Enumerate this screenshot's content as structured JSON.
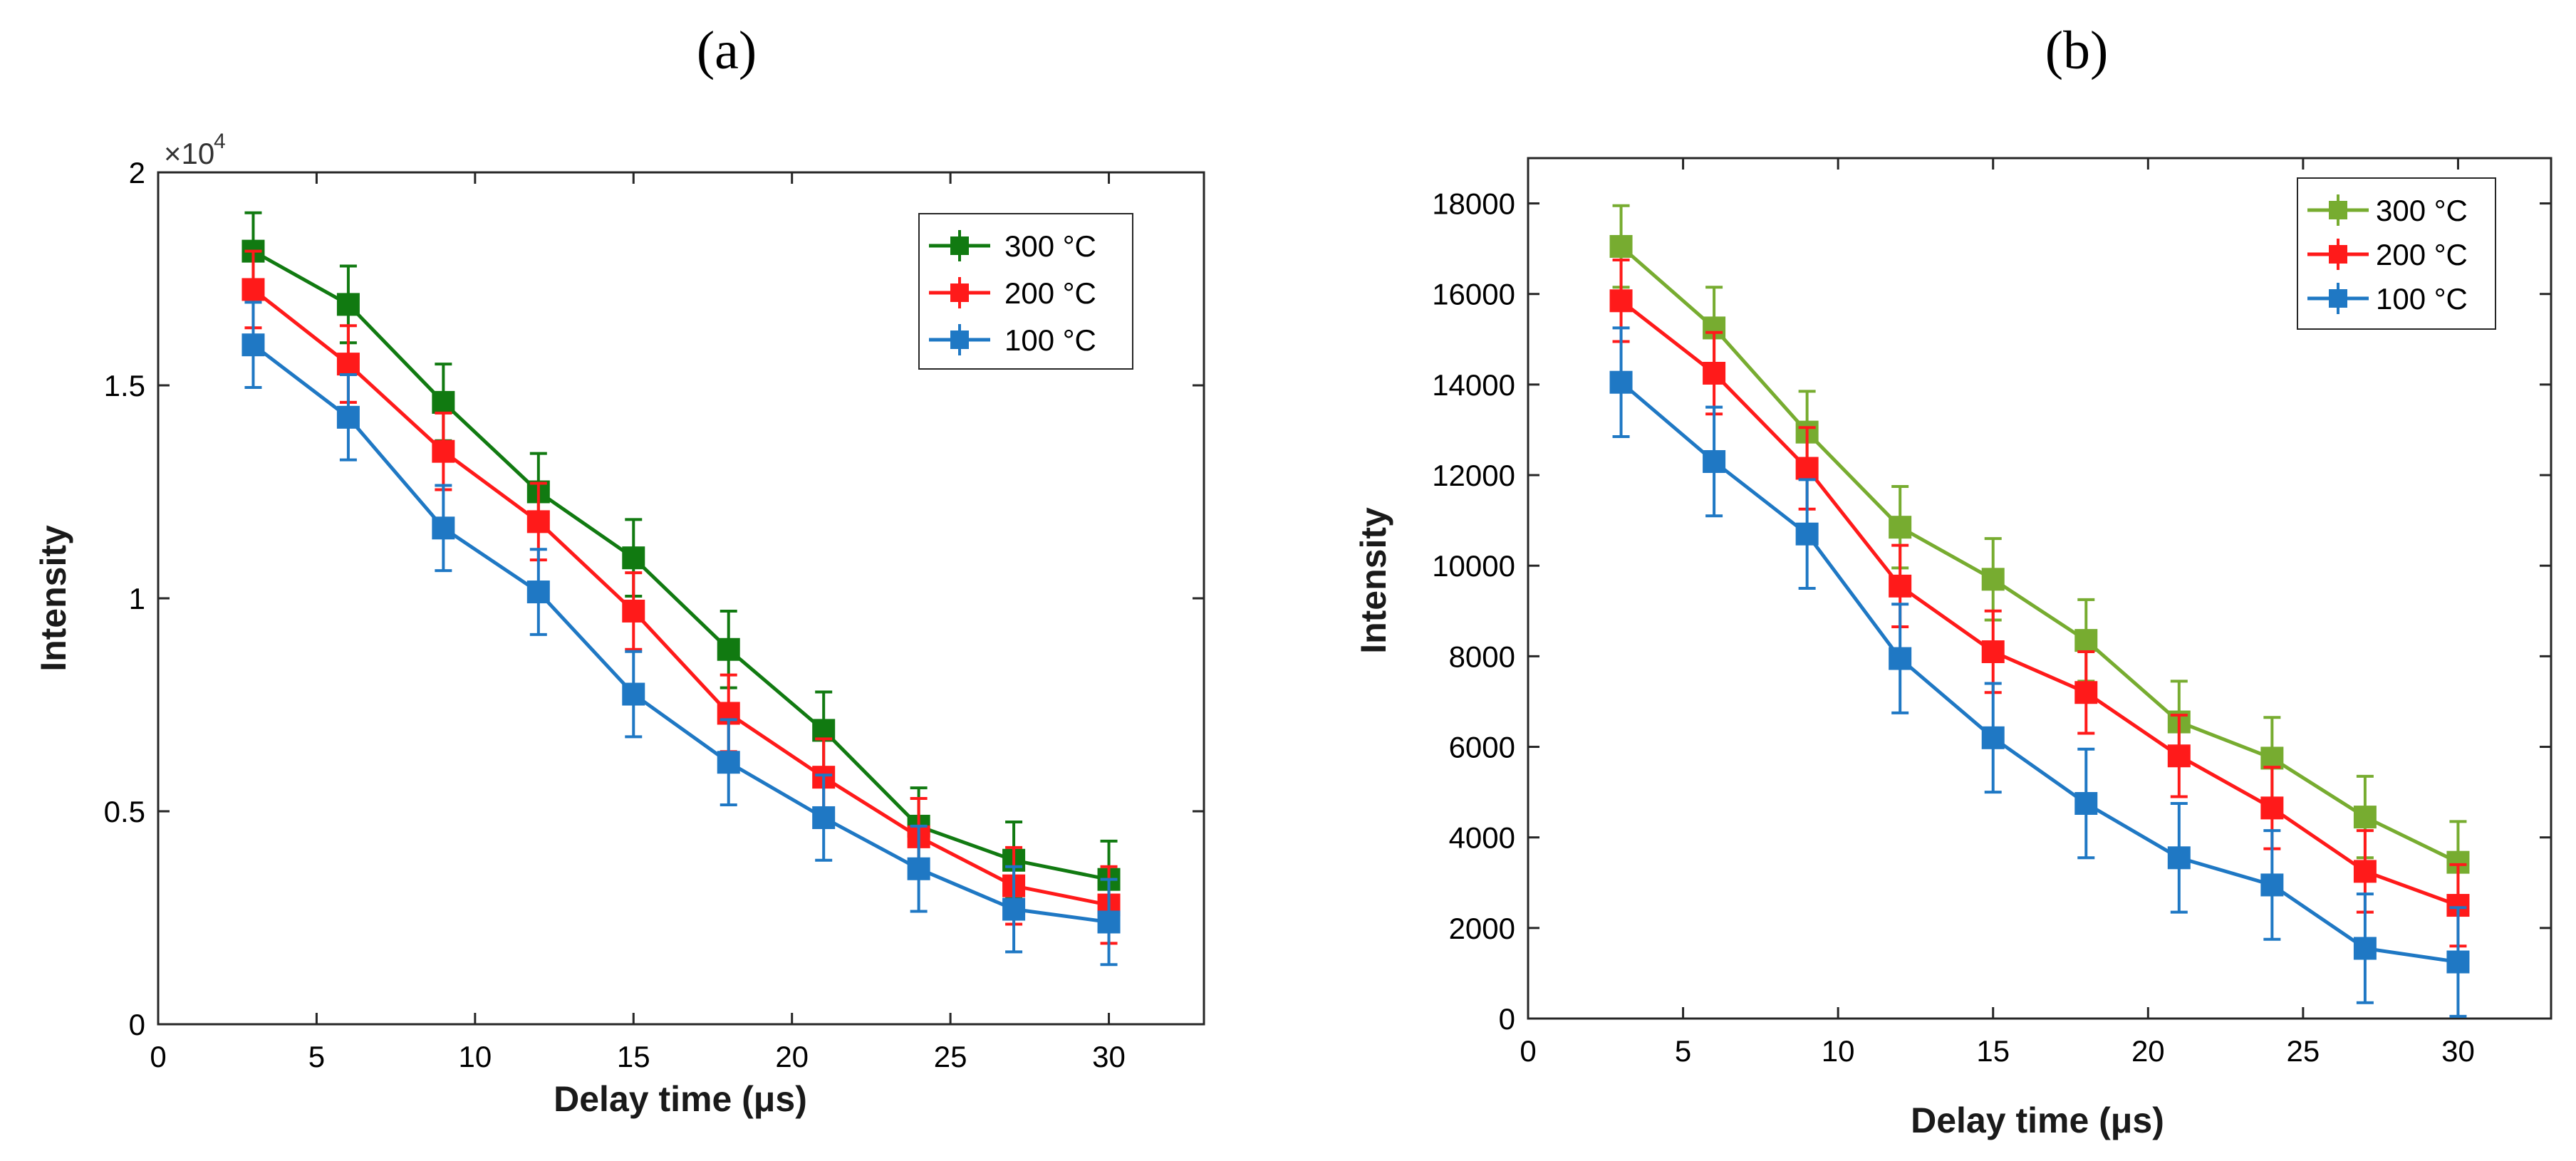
{
  "chart_data": [
    {
      "type": "line",
      "panel_label": "(a)",
      "title": "",
      "xlabel": "Delay time (μs)",
      "ylabel": "Intensity",
      "xlim": [
        0,
        33
      ],
      "ylim": [
        0,
        20000
      ],
      "xticks": [
        0,
        5,
        10,
        15,
        20,
        25,
        30
      ],
      "yticks": [
        0,
        5000,
        10000,
        15000,
        20000
      ],
      "ytick_labels": [
        "0",
        "0.5",
        "1",
        "1.5",
        "2"
      ],
      "y_exponent": {
        "base": "×10",
        "power": "4"
      },
      "grid": false,
      "legend_position": "top-right",
      "x": [
        3,
        6,
        9,
        12,
        15,
        18,
        21,
        24,
        27,
        30
      ],
      "series": [
        {
          "name": "300 °C",
          "color": "#117a11",
          "values": [
            18150,
            16900,
            14600,
            12500,
            10950,
            8800,
            6900,
            4650,
            3850,
            3400
          ],
          "errors": [
            900,
            900,
            900,
            900,
            900,
            900,
            900,
            900,
            900,
            900
          ]
        },
        {
          "name": "200 °C",
          "color": "#ff1a1a",
          "values": [
            17250,
            15500,
            13450,
            11800,
            9700,
            7300,
            5800,
            4400,
            3250,
            2800
          ],
          "errors": [
            900,
            900,
            900,
            900,
            900,
            900,
            900,
            900,
            900,
            900
          ]
        },
        {
          "name": "100 °C",
          "color": "#1f78c4",
          "values": [
            15950,
            14250,
            11650,
            10150,
            7750,
            6150,
            4850,
            3650,
            2700,
            2400
          ],
          "errors": [
            1000,
            1000,
            1000,
            1000,
            1000,
            1000,
            1000,
            1000,
            1000,
            1000
          ]
        }
      ]
    },
    {
      "type": "line",
      "panel_label": "(b)",
      "title": "",
      "xlabel": "Delay time (μs)",
      "ylabel": "Intensity",
      "xlim": [
        0,
        33
      ],
      "ylim": [
        0,
        19000
      ],
      "xticks": [
        0,
        5,
        10,
        15,
        20,
        25,
        30
      ],
      "yticks": [
        0,
        2000,
        4000,
        6000,
        8000,
        10000,
        12000,
        14000,
        16000,
        18000
      ],
      "ytick_labels": [
        "0",
        "2000",
        "4000",
        "6000",
        "8000",
        "10000",
        "12000",
        "14000",
        "16000",
        "18000"
      ],
      "grid": false,
      "legend_position": "top-right",
      "x": [
        3,
        6,
        9,
        12,
        15,
        18,
        21,
        24,
        27,
        30
      ],
      "series": [
        {
          "name": "300 °C",
          "color": "#77ac30",
          "values": [
            17050,
            15250,
            12950,
            10850,
            9700,
            8350,
            6550,
            5750,
            4450,
            3450
          ],
          "errors": [
            900,
            900,
            900,
            900,
            900,
            900,
            900,
            900,
            900,
            900
          ]
        },
        {
          "name": "200 °C",
          "color": "#ff1a1a",
          "values": [
            15850,
            14250,
            12150,
            9550,
            8100,
            7200,
            5800,
            4650,
            3250,
            2500
          ],
          "errors": [
            900,
            900,
            900,
            900,
            900,
            900,
            900,
            900,
            900,
            900
          ]
        },
        {
          "name": "100 °C",
          "color": "#1f78c4",
          "values": [
            14050,
            12300,
            10700,
            7950,
            6200,
            4750,
            3550,
            2950,
            1550,
            1250
          ],
          "errors": [
            1200,
            1200,
            1200,
            1200,
            1200,
            1200,
            1200,
            1200,
            1200,
            1200
          ]
        }
      ]
    }
  ]
}
